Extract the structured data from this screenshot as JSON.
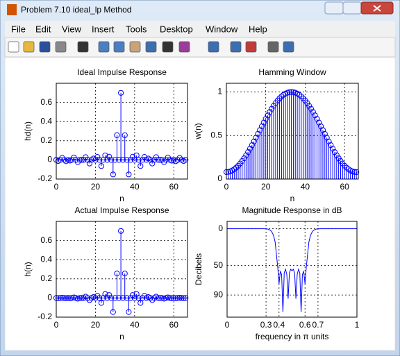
{
  "window": {
    "title": "Problem 7.10 ideal_lp Method",
    "menu": [
      "File",
      "Edit",
      "View",
      "Insert",
      "Tools",
      "Desktop",
      "Window",
      "Help"
    ]
  },
  "chart_data": [
    {
      "type": "stem",
      "title": "Ideal Impulse Response",
      "xlabel": "n",
      "ylabel": "hd(n)",
      "color": "#0000ff",
      "grid": true,
      "x": [
        0,
        1,
        2,
        3,
        4,
        5,
        6,
        7,
        8,
        9,
        10,
        11,
        12,
        13,
        14,
        15,
        16,
        17,
        18,
        19,
        20,
        21,
        22,
        23,
        24,
        25,
        26,
        27,
        28,
        29,
        30,
        31,
        32,
        33,
        34,
        35,
        36,
        37,
        38,
        39,
        40,
        41,
        42,
        43,
        44,
        45,
        46,
        47,
        48,
        49,
        50,
        51,
        52,
        53,
        54,
        55,
        56,
        57,
        58,
        59,
        60,
        61,
        62,
        63,
        64,
        65,
        66
      ],
      "values": [
        0,
        -0.0117,
        0,
        0.0212,
        0,
        -0.0134,
        0,
        -0.0076,
        0,
        0.0252,
        0,
        -0.0234,
        0,
        0,
        0,
        0.0286,
        0,
        -0.0378,
        0,
        0.0141,
        0,
        0.0312,
        0,
        -0.0637,
        0,
        0.0468,
        0,
        0.0328,
        0,
        -0.1514,
        0,
        0.2575,
        0,
        0.7,
        0,
        0.2575,
        0,
        -0.1514,
        0,
        0.0328,
        0,
        0.0468,
        0,
        -0.0637,
        0,
        0.0312,
        0,
        0.0141,
        0,
        -0.0378,
        0,
        0.0286,
        0,
        0,
        0,
        -0.0234,
        0,
        0.0252,
        0,
        -0.0076,
        0,
        -0.0134,
        0,
        0.0212,
        0,
        -0.0117,
        0
      ],
      "xlim": [
        0,
        67
      ],
      "ylim": [
        -0.2,
        0.8
      ],
      "xticks": [
        0,
        20,
        40,
        60
      ],
      "yticks": [
        -0.2,
        0,
        0.2,
        0.4,
        0.6
      ]
    },
    {
      "type": "stem",
      "title": "Hamming Window",
      "xlabel": "n",
      "ylabel": "w(n)",
      "color": "#0000ff",
      "grid": true,
      "x": [
        0,
        1,
        2,
        3,
        4,
        5,
        6,
        7,
        8,
        9,
        10,
        11,
        12,
        13,
        14,
        15,
        16,
        17,
        18,
        19,
        20,
        21,
        22,
        23,
        24,
        25,
        26,
        27,
        28,
        29,
        30,
        31,
        32,
        33,
        34,
        35,
        36,
        37,
        38,
        39,
        40,
        41,
        42,
        43,
        44,
        45,
        46,
        47,
        48,
        49,
        50,
        51,
        52,
        53,
        54,
        55,
        56,
        57,
        58,
        59,
        60,
        61,
        62,
        63,
        64,
        65,
        66
      ],
      "values": [
        0.08,
        0.0821,
        0.0883,
        0.0986,
        0.113,
        0.1311,
        0.153,
        0.1784,
        0.2071,
        0.2388,
        0.2732,
        0.31,
        0.3489,
        0.3896,
        0.4316,
        0.4745,
        0.5181,
        0.5619,
        0.6055,
        0.6484,
        0.6904,
        0.7311,
        0.77,
        0.8068,
        0.8412,
        0.8729,
        0.9016,
        0.927,
        0.9489,
        0.967,
        0.9814,
        0.9917,
        0.9979,
        1,
        0.9979,
        0.9917,
        0.9814,
        0.967,
        0.9489,
        0.927,
        0.9016,
        0.8729,
        0.8412,
        0.8068,
        0.77,
        0.7311,
        0.6904,
        0.6484,
        0.6055,
        0.5619,
        0.5181,
        0.4745,
        0.4316,
        0.3896,
        0.3489,
        0.31,
        0.2732,
        0.2388,
        0.2071,
        0.1784,
        0.153,
        0.1311,
        0.113,
        0.0986,
        0.0883,
        0.0821,
        0.08
      ],
      "xlim": [
        0,
        67
      ],
      "ylim": [
        0,
        1.1
      ],
      "xticks": [
        0,
        20,
        40,
        60
      ],
      "yticks": [
        0,
        0.5,
        1
      ]
    },
    {
      "type": "stem",
      "title": "Actual Impulse Response",
      "xlabel": "n",
      "ylabel": "h(n)",
      "color": "#0000ff",
      "grid": true,
      "x": [
        0,
        1,
        2,
        3,
        4,
        5,
        6,
        7,
        8,
        9,
        10,
        11,
        12,
        13,
        14,
        15,
        16,
        17,
        18,
        19,
        20,
        21,
        22,
        23,
        24,
        25,
        26,
        27,
        28,
        29,
        30,
        31,
        32,
        33,
        34,
        35,
        36,
        37,
        38,
        39,
        40,
        41,
        42,
        43,
        44,
        45,
        46,
        47,
        48,
        49,
        50,
        51,
        52,
        53,
        54,
        55,
        56,
        57,
        58,
        59,
        60,
        61,
        62,
        63,
        64,
        65,
        66
      ],
      "values": [
        0,
        -0.001,
        0,
        0.0021,
        0,
        -0.0018,
        0,
        -0.0014,
        0,
        0.006,
        0,
        -0.0073,
        0,
        0,
        0,
        0.0136,
        0,
        -0.0212,
        0,
        0.0091,
        0,
        0.0228,
        0,
        -0.0514,
        0,
        0.0409,
        0,
        0.0304,
        0,
        -0.1464,
        0,
        0.2554,
        0,
        0.7,
        0,
        0.2554,
        0,
        -0.1464,
        0,
        0.0304,
        0,
        0.0409,
        0,
        -0.0514,
        0,
        0.0228,
        0,
        0.0091,
        0,
        -0.0212,
        0,
        0.0136,
        0,
        0,
        0,
        -0.0073,
        0,
        0.006,
        0,
        -0.0014,
        0,
        -0.0018,
        0,
        0.0021,
        0,
        -0.001,
        0
      ],
      "xlim": [
        0,
        67
      ],
      "ylim": [
        -0.2,
        0.8
      ],
      "xticks": [
        0,
        20,
        40,
        60
      ],
      "yticks": [
        -0.2,
        0,
        0.2,
        0.4,
        0.6
      ]
    },
    {
      "type": "line",
      "title": "Magnitude Response in dB",
      "xlabel": "frequency in π units",
      "ylabel": "Decibels",
      "color": "#0000ff",
      "grid": true,
      "x": [
        0,
        0.05,
        0.1,
        0.15,
        0.2,
        0.25,
        0.28,
        0.3,
        0.31,
        0.32,
        0.33,
        0.34,
        0.35,
        0.36,
        0.37,
        0.38,
        0.39,
        0.4,
        0.41,
        0.42,
        0.43,
        0.44,
        0.45,
        0.46,
        0.47,
        0.48,
        0.49,
        0.5,
        0.51,
        0.52,
        0.53,
        0.54,
        0.55,
        0.56,
        0.57,
        0.58,
        0.59,
        0.6,
        0.61,
        0.62,
        0.63,
        0.64,
        0.65,
        0.66,
        0.67,
        0.68,
        0.69,
        0.7,
        0.72,
        0.75,
        0.8,
        0.85,
        0.9,
        0.95,
        1
      ],
      "values": [
        0,
        0,
        0,
        0,
        0,
        0,
        0,
        -0.1,
        -0.3,
        -0.8,
        -1.7,
        -3.3,
        -6,
        -10.5,
        -18,
        -35,
        -52,
        -75,
        -58,
        -62,
        -113,
        -60,
        -55,
        -62,
        -95,
        -60,
        -55,
        -57,
        -55,
        -60,
        -95,
        -62,
        -55,
        -60,
        -113,
        -62,
        -58,
        -75,
        -52,
        -35,
        -18,
        -10.5,
        -6,
        -3.3,
        -1.7,
        -0.8,
        -0.3,
        -0.1,
        0,
        0,
        0,
        0,
        0,
        0,
        0
      ],
      "xlim": [
        0,
        1
      ],
      "ylim": [
        -120,
        10
      ],
      "xticks": [
        0,
        0.3,
        0.4,
        0.6,
        0.7,
        1
      ],
      "yticks": [
        {
          "value": -90,
          "label": "90"
        },
        {
          "value": -50,
          "label": "50"
        },
        0
      ]
    }
  ]
}
